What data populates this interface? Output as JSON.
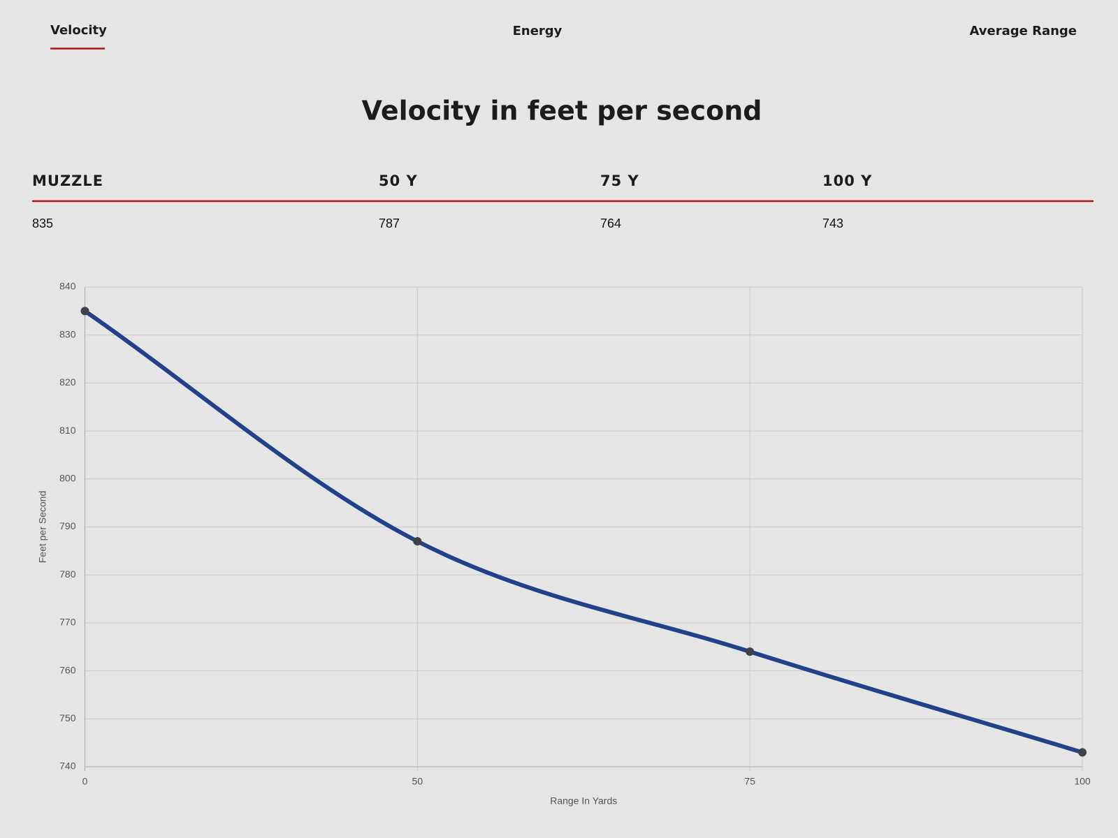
{
  "tabs": [
    "Velocity",
    "Energy",
    "Average Range"
  ],
  "title": "Velocity in feet per second",
  "table": {
    "headers": [
      "MUZZLE",
      "50 Y",
      "75 Y",
      "100 Y"
    ],
    "rows": [
      [
        "835",
        "787",
        "764",
        "743"
      ]
    ]
  },
  "chart_data": {
    "type": "line",
    "x_label": "Range In Yards",
    "y_label": "Feet per Second",
    "categories": [
      "0",
      "50",
      "75",
      "100"
    ],
    "series": [
      {
        "name": "Velocity",
        "color": "#21418a",
        "marker_color": "#3f4247",
        "values": [
          835,
          787,
          764,
          743
        ]
      }
    ],
    "ylim": [
      740,
      840
    ],
    "yticks": [
      740,
      750,
      760,
      770,
      780,
      790,
      800,
      810,
      820,
      830,
      840
    ],
    "grid": true,
    "legend": false
  }
}
